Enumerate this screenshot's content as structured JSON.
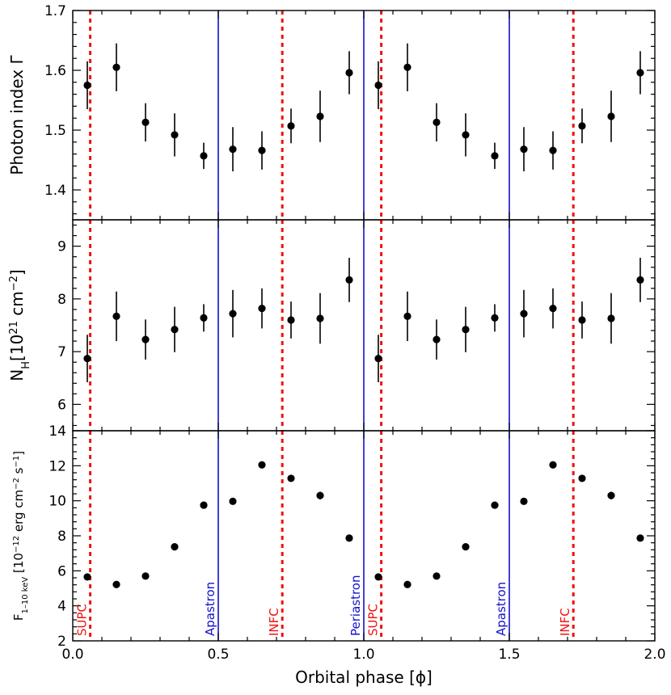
{
  "chart_data": {
    "type": "scatter",
    "xlabel": "Orbital phase [ϕ]",
    "xlim": [
      0.0,
      2.0
    ],
    "xticks": [
      "0.0",
      "0.5",
      "1.0",
      "1.5",
      "2.0"
    ],
    "panels": [
      {
        "ylabel": "Photon index Γ",
        "ylim": [
          1.35,
          1.7
        ],
        "yticks": [
          "1.4",
          "1.5",
          "1.6",
          "1.7"
        ],
        "series": [
          {
            "x": [
              0.05,
              0.15,
              0.25,
              0.35,
              0.45,
              0.55,
              0.65,
              0.75,
              0.85,
              0.95,
              1.05,
              1.15,
              1.25,
              1.35,
              1.45,
              1.55,
              1.65,
              1.75,
              1.85,
              1.95
            ],
            "y": [
              1.575,
              1.605,
              1.513,
              1.492,
              1.457,
              1.468,
              1.466,
              1.507,
              1.523,
              1.596,
              1.575,
              1.605,
              1.513,
              1.492,
              1.457,
              1.468,
              1.466,
              1.507,
              1.523,
              1.596
            ],
            "err": [
              0.04,
              0.04,
              0.032,
              0.036,
              0.022,
              0.037,
              0.032,
              0.029,
              0.043,
              0.036,
              0.04,
              0.04,
              0.032,
              0.036,
              0.022,
              0.037,
              0.032,
              0.029,
              0.043,
              0.036
            ]
          }
        ]
      },
      {
        "ylabel": "N_H [10^21 cm^-2]",
        "ylabel_parts": {
          "main": "N",
          "sub": "H",
          "unit1": "[10",
          "sup1": "21",
          "unit2": " cm",
          "sup2": "−2",
          "unit3": "]"
        },
        "ylim": [
          5.5,
          9.5
        ],
        "yticks": [
          "6",
          "7",
          "8",
          "9"
        ],
        "series": [
          {
            "x": [
              0.05,
              0.15,
              0.25,
              0.35,
              0.45,
              0.55,
              0.65,
              0.75,
              0.85,
              0.95,
              1.05,
              1.15,
              1.25,
              1.35,
              1.45,
              1.55,
              1.65,
              1.75,
              1.85,
              1.95
            ],
            "y": [
              6.87,
              7.67,
              7.23,
              7.42,
              7.64,
              7.72,
              7.82,
              7.6,
              7.63,
              8.36,
              6.87,
              7.67,
              7.23,
              7.42,
              7.64,
              7.72,
              7.82,
              7.6,
              7.63,
              8.36
            ],
            "err": [
              0.45,
              0.47,
              0.38,
              0.43,
              0.26,
              0.45,
              0.38,
              0.35,
              0.48,
              0.42,
              0.45,
              0.47,
              0.38,
              0.43,
              0.26,
              0.45,
              0.38,
              0.35,
              0.48,
              0.42
            ]
          }
        ]
      },
      {
        "ylabel": "F_1-10 keV [10^-12 erg cm^-2 s^-1]",
        "ylabel_parts": {
          "main": "F",
          "sub": "1–10 keV",
          "unit1": " [10",
          "sup1": "−12",
          "unit2": " erg cm",
          "sup2": "−2",
          "unit3": " s",
          "sup3": "−1",
          "unit4": "]"
        },
        "ylim": [
          2,
          14
        ],
        "yticks": [
          "2",
          "4",
          "6",
          "8",
          "10",
          "12",
          "14"
        ],
        "series": [
          {
            "x": [
              0.05,
              0.15,
              0.25,
              0.35,
              0.45,
              0.55,
              0.65,
              0.75,
              0.85,
              0.95,
              1.05,
              1.15,
              1.25,
              1.35,
              1.45,
              1.55,
              1.65,
              1.75,
              1.85,
              1.95
            ],
            "y": [
              5.65,
              5.22,
              5.7,
              7.37,
              9.75,
              9.97,
              12.05,
              11.28,
              10.3,
              7.87,
              5.65,
              5.22,
              5.7,
              7.37,
              9.75,
              9.97,
              12.05,
              11.28,
              10.3,
              7.87
            ],
            "err": [
              0.1,
              0.08,
              0.08,
              0.1,
              0.1,
              0.1,
              0.1,
              0.12,
              0.22,
              0.1,
              0.1,
              0.08,
              0.08,
              0.1,
              0.1,
              0.1,
              0.1,
              0.12,
              0.22,
              0.1
            ]
          }
        ]
      }
    ],
    "vertical_lines": [
      {
        "x": 0.06,
        "style": "dashed",
        "color": "#ee1111",
        "label": "SUPC"
      },
      {
        "x": 0.5,
        "style": "solid",
        "color": "#1111cc",
        "label": "Apastron"
      },
      {
        "x": 0.72,
        "style": "dashed",
        "color": "#ee1111",
        "label": "INFC"
      },
      {
        "x": 1.0,
        "style": "solid",
        "color": "#1111cc",
        "label": "Periastron"
      },
      {
        "x": 1.06,
        "style": "dashed",
        "color": "#ee1111",
        "label": "SUPC"
      },
      {
        "x": 1.5,
        "style": "solid",
        "color": "#1111cc",
        "label": "Apastron"
      },
      {
        "x": 1.72,
        "style": "dashed",
        "color": "#ee1111",
        "label": "INFC"
      }
    ],
    "grid": false,
    "marker_color": "#000000"
  }
}
